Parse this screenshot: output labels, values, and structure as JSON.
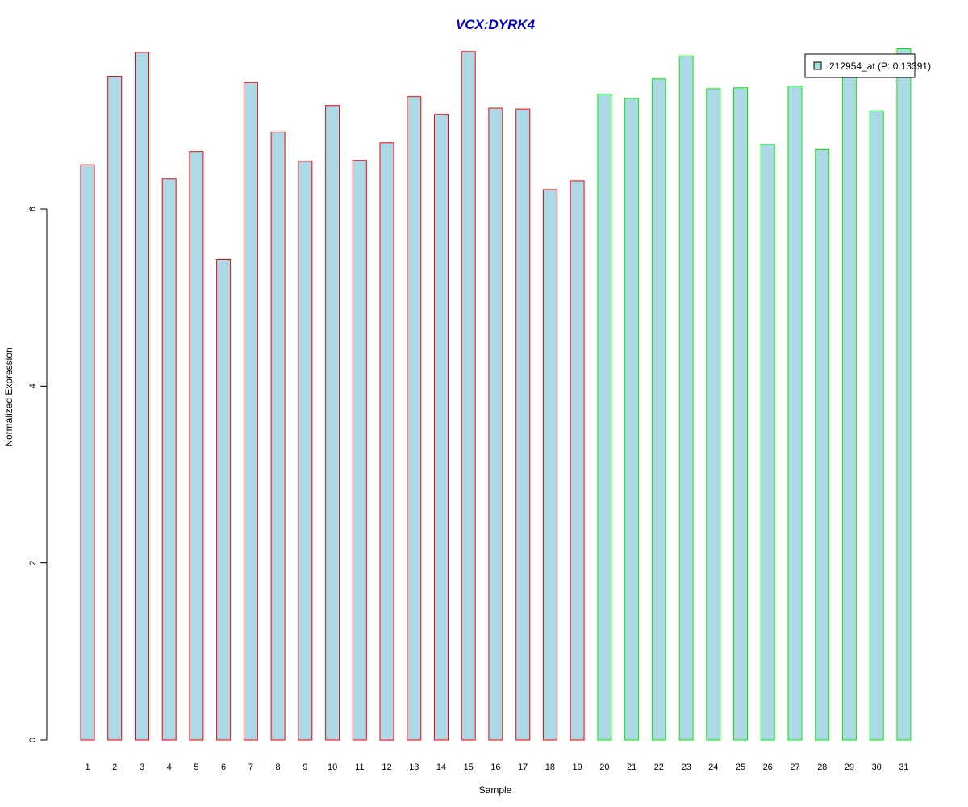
{
  "chart_data": {
    "type": "bar",
    "title": "VCX:DYRK4",
    "xlabel": "Sample",
    "ylabel": "Normalized Expression",
    "ylim": [
      0,
      7.8
    ],
    "yticks": [
      0,
      2,
      4,
      6
    ],
    "grid": false,
    "legend_position": "top-right",
    "legend": {
      "label": "212954_at (P: 0.13391)",
      "swatch_color": "#add8e6"
    },
    "categories": [
      "1",
      "2",
      "3",
      "4",
      "5",
      "6",
      "7",
      "8",
      "9",
      "10",
      "11",
      "12",
      "13",
      "14",
      "15",
      "16",
      "17",
      "18",
      "19",
      "20",
      "21",
      "22",
      "23",
      "24",
      "25",
      "26",
      "27",
      "28",
      "29",
      "30",
      "31"
    ],
    "values": [
      6.5,
      7.5,
      7.77,
      6.34,
      6.65,
      5.43,
      7.43,
      6.87,
      6.54,
      7.17,
      6.55,
      6.75,
      7.27,
      7.07,
      7.78,
      7.14,
      7.13,
      6.22,
      6.32,
      7.3,
      7.25,
      7.47,
      7.73,
      7.36,
      7.37,
      6.73,
      7.39,
      6.67,
      7.57,
      7.11,
      7.81
    ],
    "bar_fill": "#add8e6",
    "groups": [
      {
        "color": "#ff0000",
        "count": 19
      },
      {
        "color": "#00ee00",
        "count": 12
      }
    ]
  }
}
